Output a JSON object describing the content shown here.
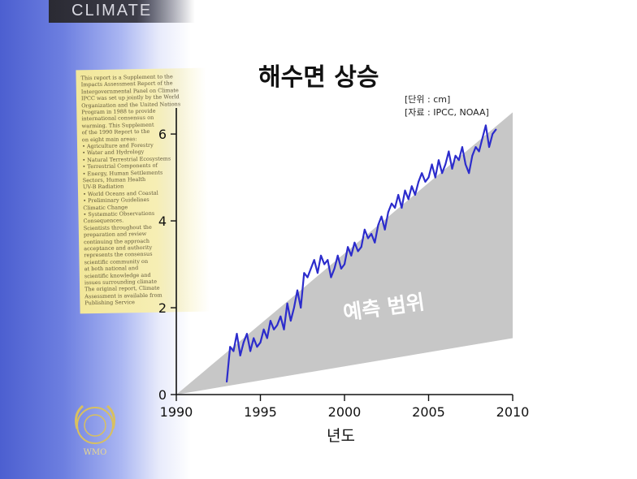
{
  "background": {
    "banner_text": "CLIMATE",
    "document_page_lines": [
      "This report is a Supplement to the",
      "Impacts Assessment Report of the",
      "Intergovernmental Panel on Climate",
      "IPCC was set up jointly by the World",
      "Organization and the United Nations",
      "Program in 1988 to provide",
      "international consensus on",
      "warming. This Supplement",
      "of the 1990 Report to the",
      "on eight main areas:",
      "• Agriculture and Forestry",
      "• Water and Hydrology",
      "• Natural Terrestrial Ecosystems",
      "• Terrestrial Components of",
      "• Energy, Human Settlements",
      "  Sectors, Human Health",
      "  UV-B Radiation",
      "• World Oceans and Coastal",
      "• Preliminary Guidelines",
      "  Climatic Change",
      "• Systematic Observations",
      "  Consequences.",
      "Scientists throughout the",
      "preparation and review",
      "continuing the approach",
      "acceptance and authority",
      "represents the consensus",
      "scientific community on",
      "at both national and",
      "scientific knowledge and",
      "issues surrounding climate",
      "The original report, Climate",
      "Assessment is available from",
      "Publishing Service"
    ],
    "emblem_text": "WMO"
  },
  "chart_data": {
    "type": "line",
    "title": "해수면 상승",
    "unit_note": "[단위 : cm]",
    "source_note": "[자료 : IPCC, NOAA]",
    "xlabel": "년도",
    "ylabel": "",
    "xlim": [
      1990,
      2010
    ],
    "ylim": [
      0,
      6.6
    ],
    "xticks": [
      1990,
      1995,
      2000,
      2005,
      2010
    ],
    "yticks": [
      0,
      2,
      4,
      6
    ],
    "grid": false,
    "legend": "none",
    "annotation": {
      "label": "예측 범위",
      "band_start": [
        1990,
        0
      ],
      "band_upper_end": [
        2010,
        6.5
      ],
      "band_lower_end": [
        2010,
        1.3
      ],
      "color": "#c7c7c7"
    },
    "series": [
      {
        "color": "#2c2ccc",
        "x": [
          1993.0,
          1993.2,
          1993.4,
          1993.6,
          1993.8,
          1994.0,
          1994.2,
          1994.4,
          1994.6,
          1994.8,
          1995.0,
          1995.2,
          1995.4,
          1995.6,
          1995.8,
          1996.0,
          1996.2,
          1996.4,
          1996.6,
          1996.8,
          1997.0,
          1997.2,
          1997.4,
          1997.6,
          1997.8,
          1998.0,
          1998.2,
          1998.4,
          1998.6,
          1998.8,
          1999.0,
          1999.2,
          1999.4,
          1999.6,
          1999.8,
          2000.0,
          2000.2,
          2000.4,
          2000.6,
          2000.8,
          2001.0,
          2001.2,
          2001.4,
          2001.6,
          2001.8,
          2002.0,
          2002.2,
          2002.4,
          2002.6,
          2002.8,
          2003.0,
          2003.2,
          2003.4,
          2003.6,
          2003.8,
          2004.0,
          2004.2,
          2004.4,
          2004.6,
          2004.8,
          2005.0,
          2005.2,
          2005.4,
          2005.6,
          2005.8,
          2006.0,
          2006.2,
          2006.4,
          2006.6,
          2006.8,
          2007.0,
          2007.2,
          2007.4,
          2007.6,
          2007.8,
          2008.0,
          2008.2,
          2008.4,
          2008.6,
          2008.8,
          2009.0
        ],
        "y": [
          0.3,
          1.1,
          1.0,
          1.4,
          0.9,
          1.2,
          1.4,
          1.0,
          1.3,
          1.1,
          1.2,
          1.5,
          1.3,
          1.7,
          1.5,
          1.6,
          1.8,
          1.5,
          2.1,
          1.7,
          2.0,
          2.4,
          2.0,
          2.8,
          2.7,
          2.9,
          3.1,
          2.8,
          3.2,
          3.0,
          3.1,
          2.7,
          2.9,
          3.2,
          2.9,
          3.0,
          3.4,
          3.2,
          3.5,
          3.3,
          3.4,
          3.8,
          3.6,
          3.7,
          3.5,
          3.9,
          4.1,
          3.8,
          4.2,
          4.4,
          4.3,
          4.6,
          4.3,
          4.7,
          4.5,
          4.8,
          4.6,
          4.9,
          5.1,
          4.9,
          5.0,
          5.3,
          5.0,
          5.4,
          5.1,
          5.3,
          5.6,
          5.2,
          5.5,
          5.4,
          5.7,
          5.3,
          5.1,
          5.5,
          5.7,
          5.6,
          5.9,
          6.2,
          5.7,
          6.0,
          6.1
        ]
      }
    ]
  }
}
